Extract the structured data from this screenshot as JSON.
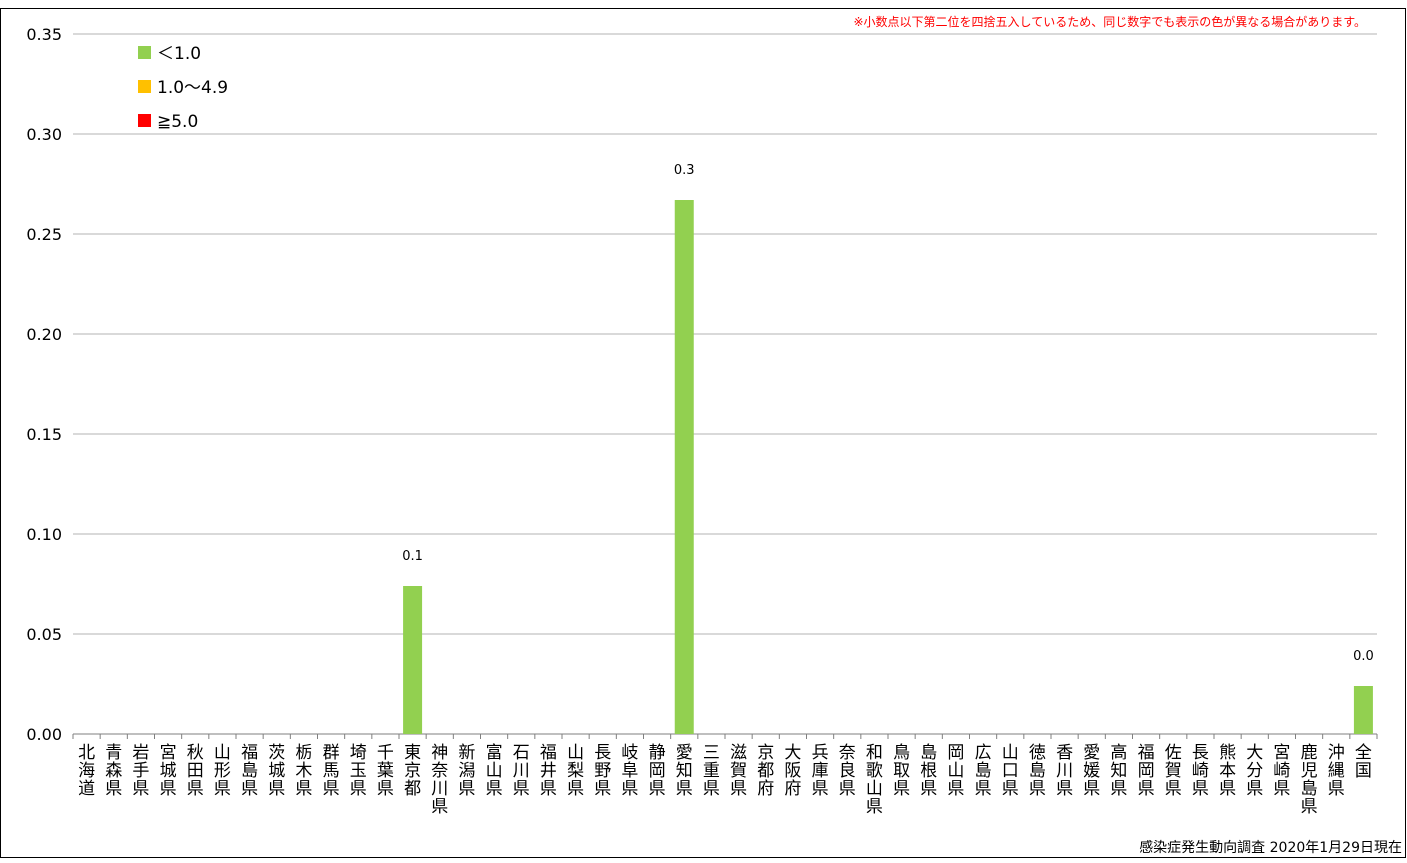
{
  "chart_data": {
    "type": "bar",
    "note": "※小数点以下第二位を四捨五入しているため、同じ数字でも表示の色が異なる場合があります。",
    "source": "感染症発生動向調査 2020年1月29日現在",
    "ylim": [
      0,
      0.35
    ],
    "yticks": [
      "0.00",
      "0.05",
      "0.10",
      "0.15",
      "0.20",
      "0.25",
      "0.30",
      "0.35"
    ],
    "grid": true,
    "legend_position": "top-left",
    "legend": [
      {
        "label": "＜1.0",
        "color": "#92d050"
      },
      {
        "label": "1.0〜4.9",
        "color": "#ffc000"
      },
      {
        "label": "≧5.0",
        "color": "#ff0000"
      }
    ],
    "categories": [
      "北海道",
      "青森県",
      "岩手県",
      "宮城県",
      "秋田県",
      "山形県",
      "福島県",
      "茨城県",
      "栃木県",
      "群馬県",
      "埼玉県",
      "千葉県",
      "東京都",
      "神奈川県",
      "新潟県",
      "富山県",
      "石川県",
      "福井県",
      "山梨県",
      "長野県",
      "岐阜県",
      "静岡県",
      "愛知県",
      "三重県",
      "滋賀県",
      "京都府",
      "大阪府",
      "兵庫県",
      "奈良県",
      "和歌山県",
      "鳥取県",
      "島根県",
      "岡山県",
      "広島県",
      "山口県",
      "徳島県",
      "香川県",
      "愛媛県",
      "高知県",
      "福岡県",
      "佐賀県",
      "長崎県",
      "熊本県",
      "大分県",
      "宮崎県",
      "鹿児島県",
      "沖縄県",
      "全国"
    ],
    "values": [
      0,
      0,
      0,
      0,
      0,
      0,
      0,
      0,
      0,
      0,
      0,
      0,
      0.074,
      0,
      0,
      0,
      0,
      0,
      0,
      0,
      0,
      0,
      0.267,
      0,
      0,
      0,
      0,
      0,
      0,
      0,
      0,
      0,
      0,
      0,
      0,
      0,
      0,
      0,
      0,
      0,
      0,
      0,
      0,
      0,
      0,
      0,
      0,
      0.024
    ],
    "data_labels": [
      {
        "category": "東京都",
        "text": "0.1"
      },
      {
        "category": "愛知県",
        "text": "0.3"
      },
      {
        "category": "全国",
        "text": "0.0"
      }
    ],
    "bar_color": "#92d050"
  }
}
